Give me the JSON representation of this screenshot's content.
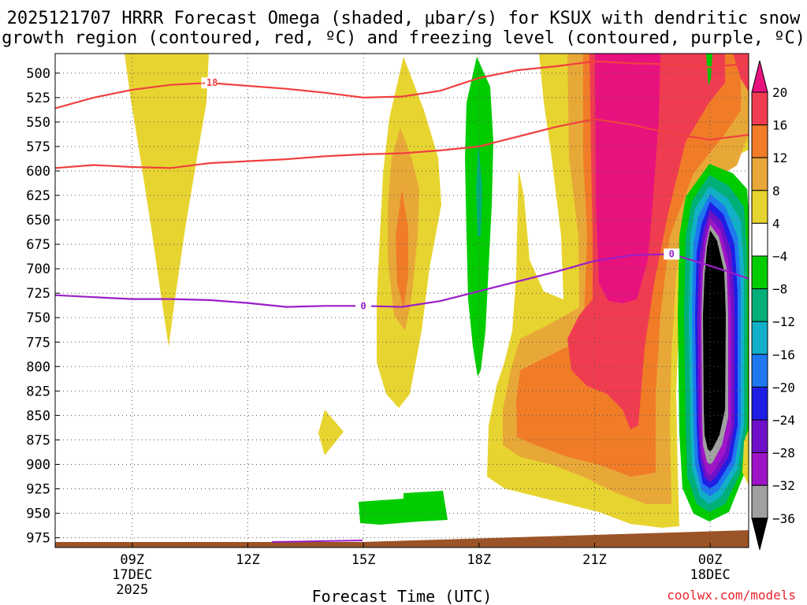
{
  "chart_data": {
    "type": "heatmap",
    "title_line1": "2025121707 HRRR Forecast Omega (shaded, μbar/s) for KSUX with dendritic snow",
    "title_line2": "growth region (contoured, red, ºC) and freezing level (contoured, purple, ºC)",
    "xlabel": "Forecast Time (UTC)",
    "credit": "coolwx.com/models",
    "x_range_hours": [
      7,
      25
    ],
    "y_range_mb": [
      480,
      985
    ],
    "grid": true,
    "x_ticks": [
      {
        "hour": 9,
        "label": "09Z",
        "sub1": "17DEC",
        "sub2": "2025"
      },
      {
        "hour": 12,
        "label": "12Z",
        "sub1": "",
        "sub2": ""
      },
      {
        "hour": 15,
        "label": "15Z",
        "sub1": "",
        "sub2": ""
      },
      {
        "hour": 18,
        "label": "18Z",
        "sub1": "",
        "sub2": ""
      },
      {
        "hour": 21,
        "label": "21Z",
        "sub1": "",
        "sub2": ""
      },
      {
        "hour": 24,
        "label": "00Z",
        "sub1": "18DEC",
        "sub2": ""
      }
    ],
    "y_ticks": [
      "500",
      "525",
      "550",
      "575",
      "600",
      "625",
      "650",
      "675",
      "700",
      "725",
      "750",
      "775",
      "800",
      "825",
      "850",
      "875",
      "900",
      "925",
      "950",
      "975"
    ],
    "colorbar": {
      "labels": [
        "20",
        "16",
        "12",
        "8",
        "4",
        "−4",
        "−8",
        "−12",
        "−16",
        "−20",
        "−24",
        "−28",
        "−32",
        "−36"
      ],
      "colors": [
        "#e8127f",
        "#f03c50",
        "#f07c28",
        "#e8a838",
        "#e8d430",
        "#ffffff",
        "#00cc00",
        "#00b078",
        "#12b0c8",
        "#1e78f0",
        "#1e1ee6",
        "#6e10c8",
        "#a014c8",
        "#a0a0a0",
        "#000000"
      ]
    },
    "series": [
      {
        "name": "-18C isotherm (upper)",
        "label": "-18",
        "color": "#f04040",
        "points": [
          [
            7,
            536
          ],
          [
            8,
            525
          ],
          [
            9,
            517
          ],
          [
            10,
            512
          ],
          [
            11,
            510
          ],
          [
            12,
            513
          ],
          [
            13,
            516
          ],
          [
            14,
            520
          ],
          [
            15,
            525
          ],
          [
            16,
            524
          ],
          [
            17,
            518
          ],
          [
            18,
            505
          ],
          [
            19,
            497
          ],
          [
            20,
            493
          ],
          [
            21,
            488
          ],
          [
            22,
            490
          ],
          [
            23,
            491
          ],
          [
            24,
            494
          ],
          [
            25,
            490
          ]
        ]
      },
      {
        "name": "-18C isotherm (lower)",
        "label": "",
        "color": "#f04040",
        "points": [
          [
            7,
            597
          ],
          [
            8,
            594
          ],
          [
            9,
            596
          ],
          [
            10,
            597
          ],
          [
            11,
            592
          ],
          [
            12,
            590
          ],
          [
            13,
            588
          ],
          [
            14,
            585
          ],
          [
            15,
            583
          ],
          [
            16,
            582
          ],
          [
            17,
            579
          ],
          [
            18,
            575
          ],
          [
            19,
            565
          ],
          [
            20,
            555
          ],
          [
            21,
            547
          ],
          [
            22,
            553
          ],
          [
            23,
            562
          ],
          [
            24,
            568
          ],
          [
            25,
            563
          ]
        ]
      },
      {
        "name": "0C freezing level",
        "label": "0",
        "color": "#9b1ec8",
        "points": [
          [
            7,
            727
          ],
          [
            8,
            729
          ],
          [
            9,
            731
          ],
          [
            10,
            731
          ],
          [
            11,
            732
          ],
          [
            12,
            735
          ],
          [
            13,
            739
          ],
          [
            14,
            738
          ],
          [
            15,
            738
          ],
          [
            16,
            739
          ],
          [
            17,
            733
          ],
          [
            18,
            723
          ],
          [
            19,
            713
          ],
          [
            20,
            703
          ],
          [
            21,
            692
          ],
          [
            22,
            686
          ],
          [
            23,
            685
          ],
          [
            24,
            697
          ],
          [
            25,
            710
          ]
        ]
      }
    ],
    "shaded_regions": [
      {
        "omega": "4 to 8",
        "color": "#e8d430"
      },
      {
        "omega": "8 to 12",
        "color": "#e8a838"
      },
      {
        "omega": "12 to 16",
        "color": "#f07c28"
      },
      {
        "omega": "16 to 20",
        "color": "#f03c50"
      },
      {
        "omega": ">20",
        "color": "#e8127f"
      },
      {
        "omega": "-4 to -8",
        "color": "#00cc00"
      },
      {
        "omega": "< -36",
        "color": "#000000"
      }
    ]
  }
}
